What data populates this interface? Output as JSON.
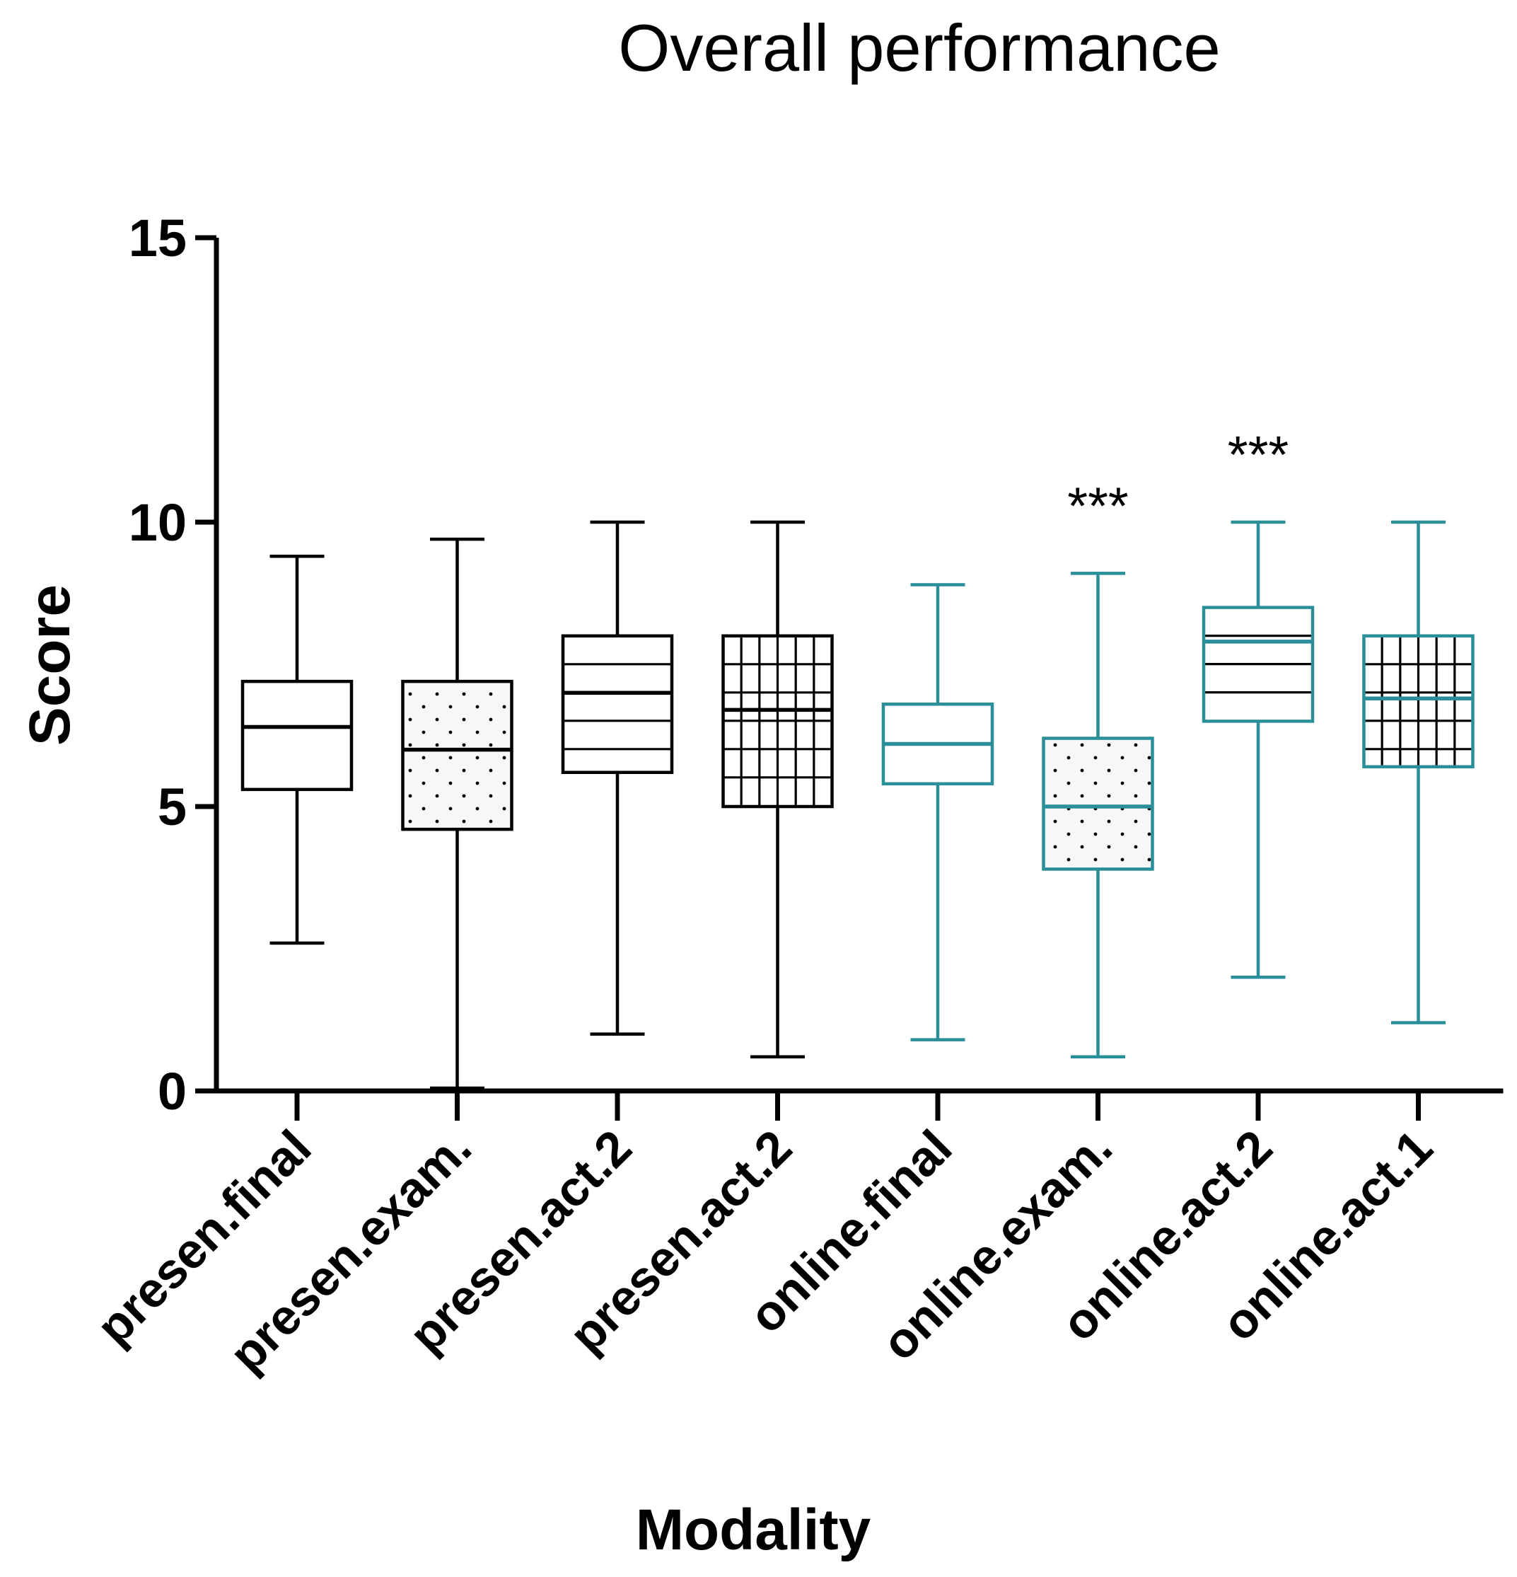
{
  "chart_data": {
    "type": "boxplot",
    "title": "Overall performance",
    "xlabel": "Modality",
    "ylabel": "Score",
    "ylim": [
      0,
      15
    ],
    "yticks": [
      0,
      5,
      10,
      15
    ],
    "grid": false,
    "colors": {
      "presencial": "#000000",
      "online": "#2a8f99"
    },
    "categories": [
      "presen.final",
      "presen.exam.",
      "presen.act.2",
      "presen.act.2",
      "online.final",
      "online.exam.",
      "online.act.2",
      "online.act.1"
    ],
    "boxes": [
      {
        "label": "presen.final",
        "min": 2.6,
        "q1": 5.3,
        "median": 6.4,
        "q3": 7.2,
        "max": 9.4,
        "pattern": "none",
        "group": "presencial"
      },
      {
        "label": "presen.exam.",
        "min": 0.05,
        "q1": 4.6,
        "median": 6.0,
        "q3": 7.2,
        "max": 9.7,
        "pattern": "dots",
        "group": "presencial"
      },
      {
        "label": "presen.act.2",
        "min": 1.0,
        "q1": 5.6,
        "median": 7.0,
        "q3": 8.0,
        "max": 10.0,
        "pattern": "hlines",
        "group": "presencial"
      },
      {
        "label": "presen.act.2",
        "min": 0.6,
        "q1": 5.0,
        "median": 6.7,
        "q3": 8.0,
        "max": 10.0,
        "pattern": "grid",
        "group": "presencial"
      },
      {
        "label": "online.final",
        "min": 0.9,
        "q1": 5.4,
        "median": 6.1,
        "q3": 6.8,
        "max": 8.9,
        "pattern": "none",
        "group": "online"
      },
      {
        "label": "online.exam.",
        "min": 0.6,
        "q1": 3.9,
        "median": 5.0,
        "q3": 6.2,
        "max": 9.1,
        "pattern": "dots",
        "group": "online",
        "annotation": "***"
      },
      {
        "label": "online.act.2",
        "min": 2.0,
        "q1": 6.5,
        "median": 7.9,
        "q3": 8.5,
        "max": 10.0,
        "pattern": "hlines",
        "group": "online",
        "annotation": "***"
      },
      {
        "label": "online.act.1",
        "min": 1.2,
        "q1": 5.7,
        "median": 6.9,
        "q3": 8.0,
        "max": 10.0,
        "pattern": "grid",
        "group": "online"
      }
    ]
  }
}
